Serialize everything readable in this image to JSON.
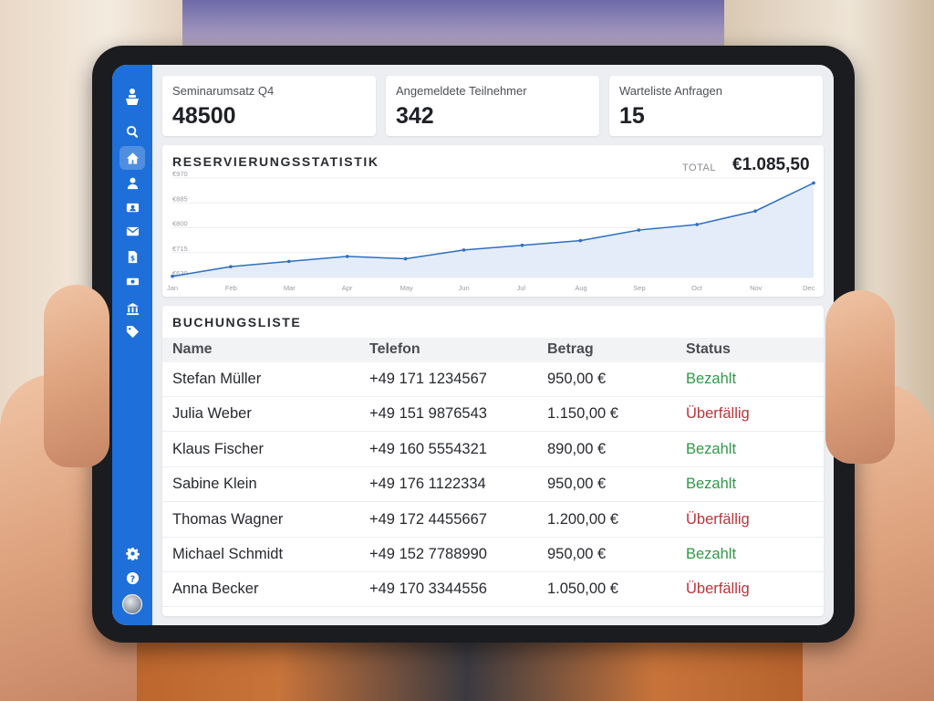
{
  "stats": [
    {
      "label": "Seminarumsatz Q4",
      "value": "48500"
    },
    {
      "label": "Angemeldete Teilnehmer",
      "value": "342"
    },
    {
      "label": "Warteliste Anfragen",
      "value": "15"
    }
  ],
  "chart": {
    "title": "RESERVIERUNGSSTATISTIK",
    "total_label": "TOTAL",
    "total_value": "€1.085,50"
  },
  "chart_data": {
    "type": "area",
    "categories": [
      "Jan",
      "Feb",
      "Mar",
      "Apr",
      "May",
      "Jun",
      "Jul",
      "Aug",
      "Sep",
      "Oct",
      "Nov",
      "Dec"
    ],
    "values": [
      634,
      667,
      685,
      702,
      694,
      724,
      740,
      756,
      792,
      811,
      857,
      953
    ],
    "ylim": [
      630,
      970
    ],
    "y_ticks": [
      {
        "value": 970,
        "label": "€970"
      },
      {
        "value": 885,
        "label": "€885"
      },
      {
        "value": 800,
        "label": "€800"
      },
      {
        "value": 715,
        "label": "€715"
      },
      {
        "value": 630,
        "label": "€630"
      }
    ],
    "title": "",
    "xlabel": "",
    "ylabel": "",
    "line_color": "#2e6fc1",
    "fill_color": "#e3ecf8",
    "grid": true
  },
  "table": {
    "title": "BUCHUNGSLISTE",
    "headers": {
      "name": "Name",
      "phone": "Telefon",
      "amount": "Betrag",
      "status": "Status"
    },
    "rows": [
      {
        "name": "Stefan Müller",
        "phone": "+49 171 1234567",
        "amount": "950,00 €",
        "status": "Bezahlt",
        "state": "paid"
      },
      {
        "name": "Julia Weber",
        "phone": "+49 151 9876543",
        "amount": "1.150,00 €",
        "status": "Überfällig",
        "state": "overdue"
      },
      {
        "name": "Klaus Fischer",
        "phone": "+49 160 5554321",
        "amount": "890,00 €",
        "status": "Bezahlt",
        "state": "paid"
      },
      {
        "name": "Sabine Klein",
        "phone": "+49 176 1122334",
        "amount": "950,00 €",
        "status": "Bezahlt",
        "state": "paid"
      },
      {
        "name": "Thomas Wagner",
        "phone": "+49 172 4455667",
        "amount": "1.200,00 €",
        "status": "Überfällig",
        "state": "overdue"
      },
      {
        "name": "Michael Schmidt",
        "phone": "+49 152 7788990",
        "amount": "950,00 €",
        "status": "Bezahlt",
        "state": "paid"
      },
      {
        "name": "Anna Becker",
        "phone": "+49 170 3344556",
        "amount": "1.050,00 €",
        "status": "Überfällig",
        "state": "overdue"
      }
    ]
  },
  "sidebar": {
    "icons": [
      "speaker-podium-icon",
      "search-icon",
      "home-icon",
      "user-icon",
      "contact-card-icon",
      "mail-icon",
      "invoice-icon",
      "cash-icon",
      "bank-icon",
      "tag-icon",
      "gear-icon",
      "help-icon"
    ],
    "active": "home-icon"
  },
  "colors": {
    "accent": "#1e6fd9",
    "paid": "#2f9a47",
    "overdue": "#b8353a"
  }
}
